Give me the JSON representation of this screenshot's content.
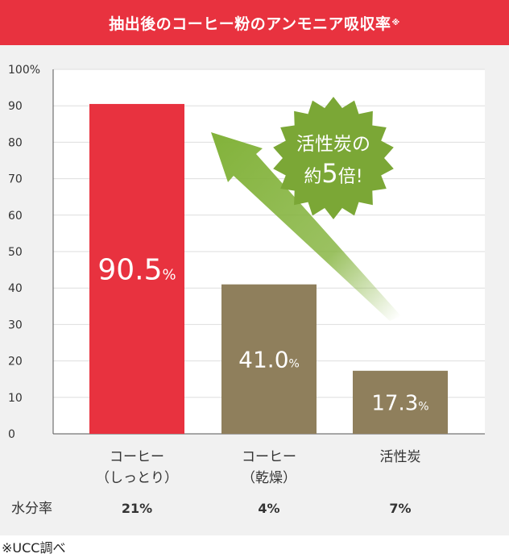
{
  "title": "抽出後のコーヒー粉のアンモニア吸収率",
  "title_mark": "※",
  "footnote": "※UCC調べ",
  "callout": {
    "line1": "活性炭の",
    "line2_prefix": "約",
    "line2_num": "5",
    "line2_suffix": "倍!"
  },
  "moisture": {
    "label": "水分率",
    "values": [
      "21%",
      "4%",
      "7%"
    ]
  },
  "colors": {
    "banner": "#e8323f",
    "bar_highlight": "#e8323f",
    "bar_other": "#8f7f5c",
    "arrow": "#82b23a",
    "panel": "#f1f1f1"
  },
  "chart_data": {
    "type": "bar",
    "categories": [
      [
        "コーヒー",
        "（しっとり）"
      ],
      [
        "コーヒー",
        "（乾燥）"
      ],
      [
        "活性炭"
      ]
    ],
    "values": [
      90.5,
      41.0,
      17.3
    ],
    "value_labels": [
      "90.5",
      "41.0",
      "17.3"
    ],
    "value_unit": "%",
    "y_ticks": [
      "0",
      "10",
      "20",
      "30",
      "40",
      "50",
      "60",
      "70",
      "80",
      "90",
      "100%"
    ],
    "ylim": [
      0,
      100
    ],
    "grid": true
  }
}
